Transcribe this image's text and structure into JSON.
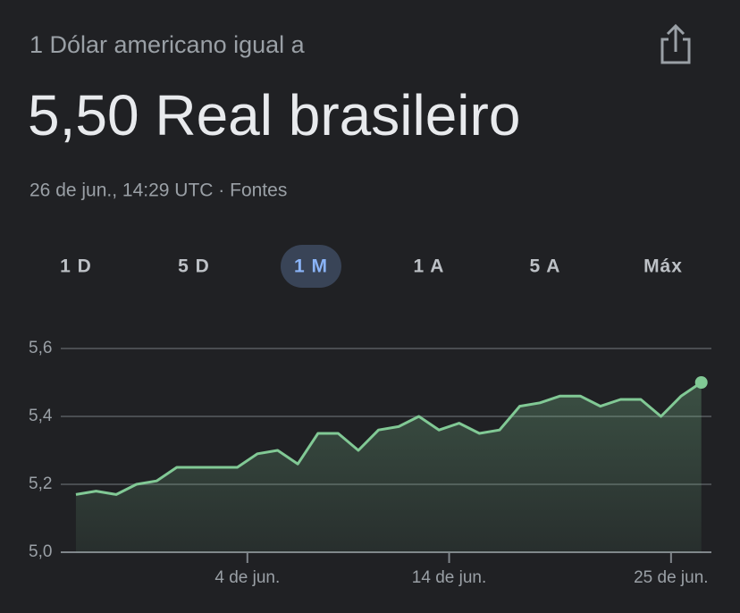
{
  "header": {
    "subtitle": "1 Dólar americano igual a",
    "title": "5,50 Real brasileiro",
    "timestamp": "26 de jun., 14:29 UTC · Fontes"
  },
  "tabs": [
    "1 D",
    "5 D",
    "1 M",
    "1 A",
    "5 A",
    "Máx"
  ],
  "selected_tab": 2,
  "chart_data": {
    "type": "line",
    "x": [
      -4.5,
      -3.5,
      -2.5,
      -1.5,
      -0.5,
      0.5,
      1.5,
      2.5,
      3.5,
      4.5,
      5.5,
      6.5,
      7.5,
      8.5,
      9.5,
      10.5,
      11.5,
      12.5,
      13.5,
      14.5,
      15.5,
      16.5,
      17.5,
      18.5,
      19.5,
      20.5,
      21.5,
      22.5,
      23.5,
      24.5,
      25.5,
      26.5
    ],
    "series": [
      {
        "color": "#81c995",
        "values": [
          5.17,
          5.18,
          5.17,
          5.2,
          5.21,
          5.25,
          5.25,
          5.25,
          5.25,
          5.29,
          5.3,
          5.26,
          5.35,
          5.35,
          5.3,
          5.36,
          5.37,
          5.4,
          5.36,
          5.38,
          5.35,
          5.36,
          5.43,
          5.44,
          5.46,
          5.46,
          5.43,
          5.45,
          5.45,
          5.4,
          5.46,
          5.5
        ]
      }
    ],
    "xlim": [
      -5.25,
      27
    ],
    "xticks": [
      {
        "value": 4,
        "label": "4 de jun."
      },
      {
        "value": 14,
        "label": "14 de jun."
      },
      {
        "value": 25,
        "label": "25 de jun."
      }
    ],
    "ylim": [
      5.0,
      5.6
    ],
    "yticks": [
      {
        "value": 5.0,
        "label": "5,0"
      },
      {
        "value": 5.2,
        "label": "5,2"
      },
      {
        "value": 5.4,
        "label": "5,4"
      },
      {
        "value": 5.6,
        "label": "5,6"
      }
    ],
    "grid": true
  }
}
